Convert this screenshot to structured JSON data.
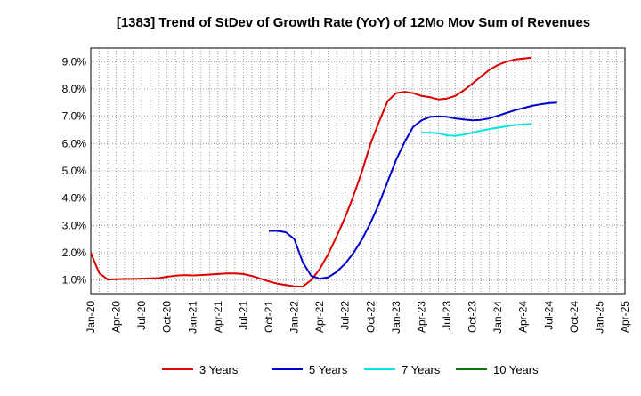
{
  "chart_data": {
    "type": "line",
    "title": "[1383]  Trend of StDev of Growth Rate (YoY) of 12Mo Mov Sum of Revenues",
    "xlabel": "",
    "ylabel": "",
    "x_ticks": [
      "Jan-20",
      "Apr-20",
      "Jul-20",
      "Oct-20",
      "Jan-21",
      "Apr-21",
      "Jul-21",
      "Oct-21",
      "Jan-22",
      "Apr-22",
      "Jul-22",
      "Oct-22",
      "Jan-23",
      "Apr-23",
      "Jul-23",
      "Oct-23",
      "Jan-24",
      "Apr-24",
      "Jul-24",
      "Oct-24",
      "Jan-25",
      "Apr-25"
    ],
    "y_ticks": [
      "1.0%",
      "2.0%",
      "3.0%",
      "4.0%",
      "5.0%",
      "6.0%",
      "7.0%",
      "8.0%",
      "9.0%"
    ],
    "ylim": [
      0.5,
      9.5
    ],
    "grid": true,
    "legend_position": "bottom",
    "series": [
      {
        "name": "3 Years",
        "color": "#dd0000",
        "start_index": 0,
        "values": [
          2.0,
          1.25,
          1.02,
          1.03,
          1.04,
          1.04,
          1.05,
          1.06,
          1.07,
          1.12,
          1.16,
          1.18,
          1.17,
          1.18,
          1.2,
          1.22,
          1.24,
          1.24,
          1.22,
          1.15,
          1.05,
          0.95,
          0.87,
          0.82,
          0.77,
          0.76,
          1.0,
          1.4,
          1.95,
          2.6,
          3.3,
          4.1,
          5.0,
          6.0,
          6.8,
          7.55,
          7.85,
          7.9,
          7.85,
          7.75,
          7.7,
          7.62,
          7.65,
          7.75,
          7.95,
          8.2,
          8.45,
          8.7,
          8.88,
          9.0,
          9.08,
          9.12,
          9.15
        ]
      },
      {
        "name": "5 Years",
        "color": "#0000cc",
        "start_index": 21,
        "values": [
          2.8,
          2.8,
          2.75,
          2.5,
          1.65,
          1.15,
          1.05,
          1.1,
          1.3,
          1.6,
          2.0,
          2.5,
          3.1,
          3.8,
          4.6,
          5.4,
          6.05,
          6.6,
          6.85,
          6.98,
          7.0,
          6.98,
          6.92,
          6.88,
          6.85,
          6.87,
          6.92,
          7.02,
          7.12,
          7.22,
          7.3,
          7.38,
          7.44,
          7.48,
          7.5
        ]
      },
      {
        "name": "7 Years",
        "color": "#00e5e5",
        "start_index": 39,
        "values": [
          6.4,
          6.4,
          6.38,
          6.3,
          6.28,
          6.33,
          6.4,
          6.47,
          6.53,
          6.58,
          6.63,
          6.68,
          6.7,
          6.72
        ]
      },
      {
        "name": "10 Years",
        "color": "#007700",
        "start_index": 0,
        "values": []
      }
    ]
  }
}
